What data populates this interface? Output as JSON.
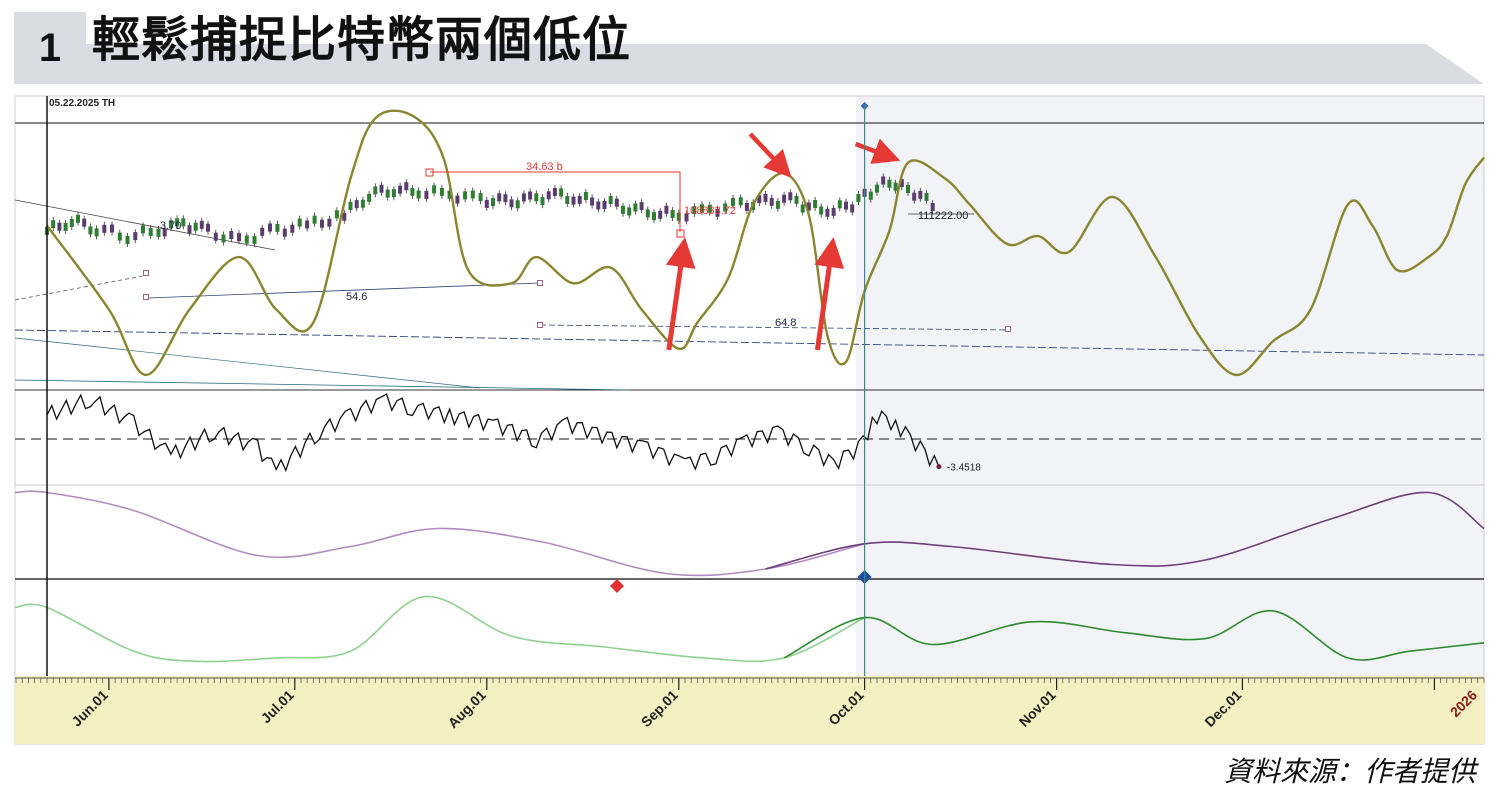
{
  "figure": {
    "number": "1",
    "title": "輕鬆捕捉比特幣兩個低位",
    "source": "資料來源：作者提供"
  },
  "colors": {
    "cycle_line": "#8a8630",
    "bull_candle": "#2e7d32",
    "bear_candle": "#5a3c6e",
    "annotation_red": "#e53935",
    "oscillator": "#111111",
    "wave_purple": "#b48ac4",
    "wave_purple_dark": "#6e3f78",
    "wave_green_light": "#8fd18f",
    "wave_green_dark": "#2e8b2e",
    "axis_band": "#f5f0c2",
    "forecast_bg": "#f1f3f6"
  },
  "chart_data": [
    {
      "type": "line",
      "panel": "price",
      "title": "",
      "date_header": "05.22.2025 TH",
      "x_tick_labels": [
        "Jun.01",
        "Jul.01",
        "Aug.01",
        "Sep.01",
        "Oct.01",
        "Nov.01",
        "Dec.01",
        "2026"
      ],
      "x_tick_dates": [
        "2025-06-01",
        "2025-07-01",
        "2025-08-01",
        "2025-09-01",
        "2025-10-01",
        "2025-11-01",
        "2025-12-01",
        "2026-01-01"
      ],
      "forecast_start": "2025-10-01",
      "price_annotations": [
        "34.63 b",
        "3.70",
        "54.6",
        "64.8",
        "108833.72",
        "111222.00"
      ],
      "low_markers": [
        "2025-09-01",
        "2025-09-25"
      ],
      "high_markers": [
        "2025-09-19",
        "2025-10-06"
      ],
      "cycle_line": {
        "name": "",
        "points": [
          [
            "2025-05-22",
            62
          ],
          [
            "2025-06-01",
            30
          ],
          [
            "2025-06-07",
            5
          ],
          [
            "2025-06-14",
            30
          ],
          [
            "2025-06-22",
            50
          ],
          [
            "2025-06-28",
            30
          ],
          [
            "2025-07-04",
            25
          ],
          [
            "2025-07-10",
            80
          ],
          [
            "2025-07-14",
            103
          ],
          [
            "2025-07-20",
            104
          ],
          [
            "2025-07-25",
            88
          ],
          [
            "2025-07-29",
            45
          ],
          [
            "2025-08-05",
            40
          ],
          [
            "2025-08-09",
            50
          ],
          [
            "2025-08-15",
            40
          ],
          [
            "2025-08-21",
            46
          ],
          [
            "2025-08-26",
            30
          ],
          [
            "2025-09-01",
            15
          ],
          [
            "2025-09-04",
            25
          ],
          [
            "2025-09-09",
            42
          ],
          [
            "2025-09-13",
            70
          ],
          [
            "2025-09-18",
            82
          ],
          [
            "2025-09-22",
            66
          ],
          [
            "2025-09-25",
            20
          ],
          [
            "2025-09-28",
            10
          ],
          [
            "2025-10-01",
            37
          ],
          [
            "2025-10-05",
            60
          ],
          [
            "2025-10-08",
            86
          ],
          [
            "2025-10-14",
            80
          ],
          [
            "2025-10-18",
            70
          ],
          [
            "2025-10-24",
            55
          ],
          [
            "2025-10-29",
            58
          ],
          [
            "2025-11-03",
            52
          ],
          [
            "2025-11-10",
            73
          ],
          [
            "2025-11-17",
            50
          ],
          [
            "2025-11-24",
            20
          ],
          [
            "2025-11-30",
            5
          ],
          [
            "2025-12-06",
            18
          ],
          [
            "2025-12-12",
            30
          ],
          [
            "2025-12-18",
            70
          ],
          [
            "2025-12-22",
            62
          ],
          [
            "2025-12-26",
            45
          ],
          [
            "2025-12-31",
            50
          ],
          [
            "2026-01-03",
            58
          ],
          [
            "2026-01-06",
            78
          ],
          [
            "2026-01-09",
            88
          ]
        ]
      },
      "price_bars": [
        [
          "2025-05-22",
          60
        ],
        [
          "2025-05-26",
          64
        ],
        [
          "2025-05-30",
          61
        ],
        [
          "2025-06-04",
          58
        ],
        [
          "2025-06-09",
          60
        ],
        [
          "2025-06-13",
          63
        ],
        [
          "2025-06-17",
          60
        ],
        [
          "2025-06-22",
          56
        ],
        [
          "2025-06-27",
          60
        ],
        [
          "2025-07-03",
          62
        ],
        [
          "2025-07-09",
          66
        ],
        [
          "2025-07-13",
          74
        ],
        [
          "2025-07-17",
          76
        ],
        [
          "2025-07-21",
          75
        ],
        [
          "2025-07-26",
          74
        ],
        [
          "2025-07-31",
          72
        ],
        [
          "2025-08-04",
          71
        ],
        [
          "2025-08-08",
          72
        ],
        [
          "2025-08-12",
          74
        ],
        [
          "2025-08-16",
          72
        ],
        [
          "2025-08-20",
          71
        ],
        [
          "2025-08-24",
          69
        ],
        [
          "2025-08-28",
          67
        ],
        [
          "2025-09-01",
          66
        ],
        [
          "2025-09-06",
          68
        ],
        [
          "2025-09-11",
          70
        ],
        [
          "2025-09-15",
          71
        ],
        [
          "2025-09-19",
          72
        ],
        [
          "2025-09-22",
          69
        ],
        [
          "2025-09-26",
          68
        ],
        [
          "2025-09-29",
          70
        ],
        [
          "2025-10-02",
          75
        ],
        [
          "2025-10-05",
          79
        ],
        [
          "2025-10-08",
          76
        ],
        [
          "2025-10-11",
          72
        ],
        [
          "2025-10-13",
          69
        ]
      ]
    },
    {
      "type": "line",
      "panel": "oscillator",
      "last_value_label": "-3.4518",
      "zero_level": 0,
      "points": [
        [
          "2025-05-22",
          3
        ],
        [
          "2025-05-29",
          5
        ],
        [
          "2025-06-05",
          2
        ],
        [
          "2025-06-11",
          -2
        ],
        [
          "2025-06-18",
          1
        ],
        [
          "2025-06-25",
          -1
        ],
        [
          "2025-06-28",
          -4
        ],
        [
          "2025-07-05",
          1
        ],
        [
          "2025-07-10",
          3
        ],
        [
          "2025-07-15",
          5
        ],
        [
          "2025-07-20",
          4
        ],
        [
          "2025-07-26",
          3
        ],
        [
          "2025-08-02",
          2
        ],
        [
          "2025-08-09",
          0
        ],
        [
          "2025-08-14",
          2
        ],
        [
          "2025-08-18",
          1
        ],
        [
          "2025-08-22",
          0
        ],
        [
          "2025-08-27",
          -1
        ],
        [
          "2025-09-02",
          -3
        ],
        [
          "2025-09-07",
          -2
        ],
        [
          "2025-09-12",
          0
        ],
        [
          "2025-09-17",
          1
        ],
        [
          "2025-09-22",
          -1
        ],
        [
          "2025-09-26",
          -3
        ],
        [
          "2025-09-30",
          -1
        ],
        [
          "2025-10-03",
          3
        ],
        [
          "2025-10-06",
          2
        ],
        [
          "2025-10-10",
          -1
        ],
        [
          "2025-10-13",
          -3.4518
        ]
      ]
    },
    {
      "type": "line",
      "panel": "cycle-wave-1",
      "points": [
        [
          "2025-05-22",
          0.95
        ],
        [
          "2025-06-05",
          0.75
        ],
        [
          "2025-06-25",
          0.25
        ],
        [
          "2025-07-10",
          0.35
        ],
        [
          "2025-07-24",
          0.55
        ],
        [
          "2025-08-10",
          0.4
        ],
        [
          "2025-08-30",
          0.05
        ],
        [
          "2025-09-15",
          0.1
        ],
        [
          "2025-10-01",
          0.38
        ],
        [
          "2025-10-15",
          0.35
        ],
        [
          "2025-11-10",
          0.15
        ],
        [
          "2025-11-25",
          0.2
        ],
        [
          "2025-12-15",
          0.65
        ],
        [
          "2025-12-31",
          0.95
        ],
        [
          "2026-01-09",
          0.55
        ]
      ]
    },
    {
      "type": "line",
      "panel": "cycle-wave-2",
      "points": [
        [
          "2025-05-22",
          0.72
        ],
        [
          "2025-06-05",
          0.2
        ],
        [
          "2025-06-15",
          0.08
        ],
        [
          "2025-06-28",
          0.12
        ],
        [
          "2025-07-10",
          0.2
        ],
        [
          "2025-07-22",
          0.85
        ],
        [
          "2025-08-05",
          0.38
        ],
        [
          "2025-08-20",
          0.25
        ],
        [
          "2025-09-05",
          0.12
        ],
        [
          "2025-09-18",
          0.12
        ],
        [
          "2025-10-01",
          0.6
        ],
        [
          "2025-10-12",
          0.28
        ],
        [
          "2025-10-28",
          0.55
        ],
        [
          "2025-11-12",
          0.42
        ],
        [
          "2025-11-25",
          0.35
        ],
        [
          "2025-12-06",
          0.68
        ],
        [
          "2025-12-18",
          0.12
        ],
        [
          "2025-12-28",
          0.2
        ],
        [
          "2026-01-09",
          0.3
        ]
      ]
    }
  ]
}
